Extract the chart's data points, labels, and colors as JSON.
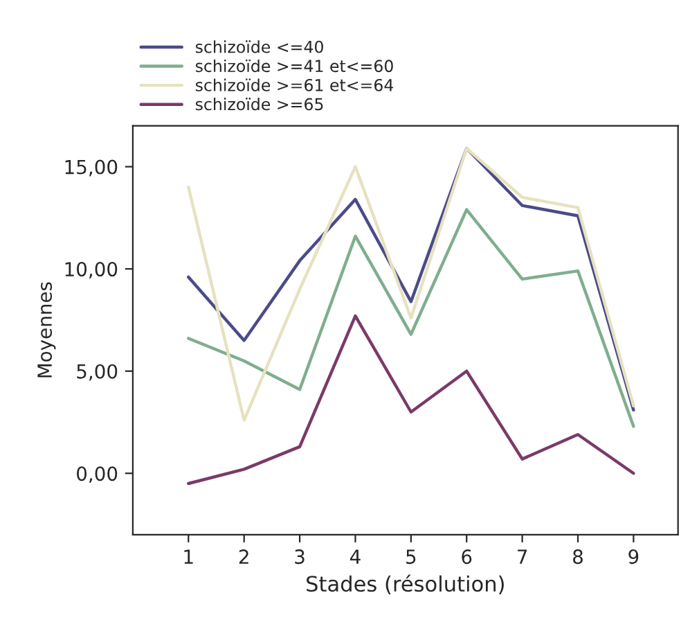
{
  "chart_data": {
    "type": "line",
    "xlabel": "Stades (résolution)",
    "ylabel": "Moyennes",
    "x": [
      1,
      2,
      3,
      4,
      5,
      6,
      7,
      8,
      9
    ],
    "xlim": [
      0,
      9.8
    ],
    "xticks": [
      1,
      2,
      3,
      4,
      5,
      6,
      7,
      8,
      9
    ],
    "ylim": [
      -3,
      17
    ],
    "yticks": [
      {
        "value": 0,
        "label": "0,00"
      },
      {
        "value": 5,
        "label": "5,00"
      },
      {
        "value": 10,
        "label": "10,00"
      },
      {
        "value": 15,
        "label": "15,00"
      }
    ],
    "grid": false,
    "legend": "top left",
    "marker": "none",
    "line_style": "solid",
    "series": [
      {
        "name": "schizoïde <=40",
        "color": "#4b4b8a",
        "values": [
          9.6,
          6.5,
          10.4,
          13.4,
          8.4,
          15.9,
          13.1,
          12.6,
          3.1
        ]
      },
      {
        "name": "schizoïde >=41 et<=60",
        "color": "#7fae8e",
        "values": [
          6.6,
          5.5,
          4.1,
          11.6,
          6.8,
          12.9,
          9.5,
          9.9,
          2.3
        ]
      },
      {
        "name": "schizoïde >=61 et<=64",
        "color": "#e6e2c0",
        "values": [
          14.0,
          2.6,
          9.0,
          15.0,
          7.6,
          15.9,
          13.5,
          13.0,
          3.3
        ]
      },
      {
        "name": "schizoïde >=65",
        "color": "#7a3a68",
        "values": [
          -0.5,
          0.2,
          1.3,
          7.7,
          3.0,
          5.0,
          0.7,
          1.9,
          0.0
        ]
      }
    ]
  }
}
